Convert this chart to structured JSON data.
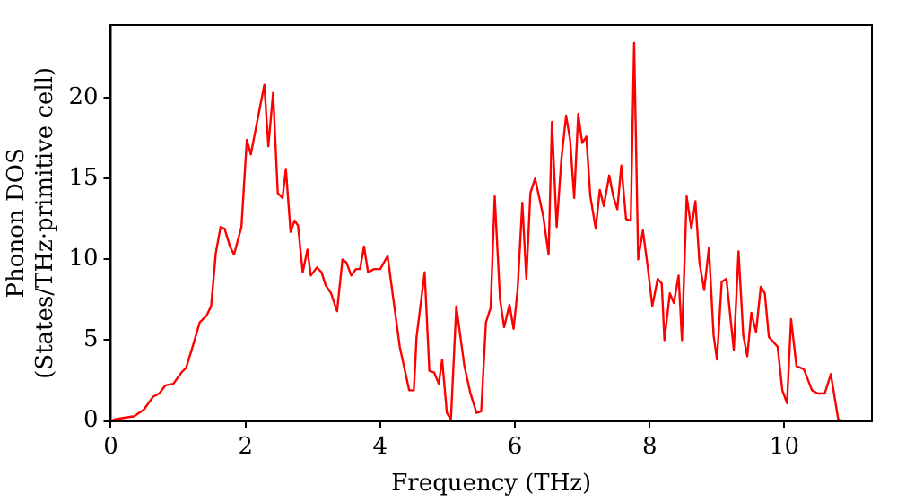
{
  "chart_data": {
    "type": "line",
    "xlabel": "Frequency (THz)",
    "ylabel": "Phonon DOS\n(States/THz·primitive cell)",
    "xlim": [
      0,
      11.3
    ],
    "ylim": [
      0,
      24.5
    ],
    "xticks": [
      0,
      2,
      4,
      6,
      8,
      10
    ],
    "yticks": [
      0,
      5,
      10,
      15,
      20
    ],
    "grid": false,
    "legend": false,
    "marker": "none",
    "line_style": "solid",
    "series": [
      {
        "color": "#ff0000",
        "x": [
          0,
          0.06,
          0.35,
          0.49,
          0.63,
          0.72,
          0.81,
          0.93,
          1.05,
          1.12,
          1.23,
          1.32,
          1.42,
          1.49,
          1.56,
          1.63,
          1.69,
          1.77,
          1.83,
          1.94,
          2.02,
          2.08,
          2.14,
          2.28,
          2.34,
          2.41,
          2.48,
          2.55,
          2.6,
          2.67,
          2.73,
          2.78,
          2.85,
          2.92,
          2.97,
          3.06,
          3.13,
          3.19,
          3.27,
          3.36,
          3.44,
          3.5,
          3.57,
          3.64,
          3.7,
          3.76,
          3.82,
          3.91,
          4.0,
          4.11,
          4.29,
          4.43,
          4.5,
          4.54,
          4.66,
          4.73,
          4.8,
          4.87,
          4.92,
          4.99,
          5.05,
          5.13,
          5.25,
          5.34,
          5.43,
          5.5,
          5.57,
          5.64,
          5.7,
          5.78,
          5.84,
          5.92,
          5.98,
          6.04,
          6.11,
          6.17,
          6.23,
          6.3,
          6.42,
          6.5,
          6.55,
          6.62,
          6.69,
          6.76,
          6.82,
          6.88,
          6.94,
          7.0,
          7.06,
          7.12,
          7.2,
          7.26,
          7.32,
          7.4,
          7.46,
          7.52,
          7.58,
          7.65,
          7.72,
          7.77,
          7.83,
          7.9,
          7.97,
          8.04,
          8.12,
          8.18,
          8.22,
          8.3,
          8.36,
          8.43,
          8.48,
          8.55,
          8.62,
          8.68,
          8.74,
          8.81,
          8.88,
          8.95,
          9.0,
          9.07,
          9.14,
          9.25,
          9.32,
          9.39,
          9.45,
          9.51,
          9.58,
          9.65,
          9.71,
          9.77,
          9.9,
          9.97,
          10.04,
          10.1,
          10.18,
          10.29,
          10.41,
          10.5,
          10.6,
          10.69,
          10.8,
          10.88
        ],
        "values": [
          0,
          0.1,
          0.3,
          0.7,
          1.5,
          1.7,
          2.2,
          2.3,
          3.0,
          3.3,
          4.8,
          6.1,
          6.5,
          7.1,
          10.4,
          12.0,
          11.9,
          10.8,
          10.3,
          12.0,
          17.4,
          16.5,
          17.8,
          20.8,
          17.0,
          20.3,
          14.1,
          13.8,
          15.6,
          11.7,
          12.4,
          12.1,
          9.2,
          10.6,
          9.0,
          9.5,
          9.2,
          8.4,
          7.9,
          6.8,
          10.0,
          9.8,
          9.0,
          9.4,
          9.4,
          10.8,
          9.2,
          9.4,
          9.4,
          10.2,
          4.6,
          1.9,
          1.9,
          5.2,
          9.2,
          3.1,
          3.0,
          2.3,
          3.8,
          0.5,
          0.1,
          7.1,
          3.4,
          1.7,
          0.5,
          0.6,
          6.1,
          7.0,
          13.9,
          7.5,
          5.8,
          7.2,
          5.7,
          8.1,
          13.5,
          8.8,
          14.1,
          15.0,
          12.7,
          10.3,
          18.5,
          12.0,
          16.2,
          18.9,
          17.4,
          13.8,
          19.0,
          17.2,
          17.6,
          13.9,
          11.9,
          14.3,
          13.3,
          15.2,
          13.9,
          13.1,
          15.8,
          12.5,
          12.4,
          23.4,
          10.0,
          11.8,
          9.6,
          7.1,
          8.8,
          8.5,
          5.0,
          7.9,
          7.3,
          9.0,
          5.0,
          13.9,
          11.9,
          13.6,
          9.8,
          8.1,
          10.7,
          5.3,
          3.8,
          8.6,
          8.8,
          4.4,
          10.5,
          5.3,
          4.0,
          6.7,
          5.5,
          8.3,
          7.9,
          5.2,
          4.6,
          1.9,
          1.1,
          6.3,
          3.4,
          3.2,
          1.9,
          1.7,
          1.7,
          2.9,
          0.1,
          0
        ]
      }
    ]
  }
}
